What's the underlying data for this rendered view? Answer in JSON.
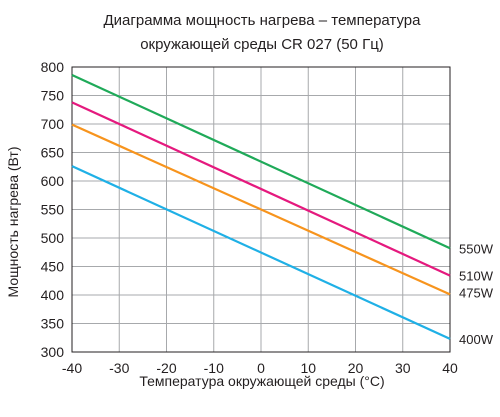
{
  "chart_data": {
    "type": "line",
    "title_lines": [
      "Диаграмма мощность нагрева – температура",
      "окружающей среды CR 027 (50 Гц)"
    ],
    "xlabel": "Температура окружающей среды (°C)",
    "ylabel": "Мощность нагрева (Вт)",
    "xlim": [
      -40,
      40
    ],
    "ylim": [
      300,
      800
    ],
    "xticks": [
      "-40",
      "-30",
      "-20",
      "-10",
      "0",
      "10",
      "20",
      "30",
      "40"
    ],
    "yticks": [
      "300",
      "350",
      "400",
      "450",
      "500",
      "550",
      "600",
      "650",
      "700",
      "750",
      "800"
    ],
    "grid": true,
    "series": [
      {
        "name": "550W",
        "color": "#1faa59",
        "x": [
          -40,
          40
        ],
        "y": [
          786,
          482
        ]
      },
      {
        "name": "510W",
        "color": "#e5197e",
        "x": [
          -40,
          40
        ],
        "y": [
          738,
          434
        ]
      },
      {
        "name": "475W",
        "color": "#f7941d",
        "x": [
          -40,
          40
        ],
        "y": [
          699,
          401
        ]
      },
      {
        "name": "400W",
        "color": "#1fb0e6",
        "x": [
          -40,
          40
        ],
        "y": [
          626,
          323
        ]
      }
    ]
  }
}
